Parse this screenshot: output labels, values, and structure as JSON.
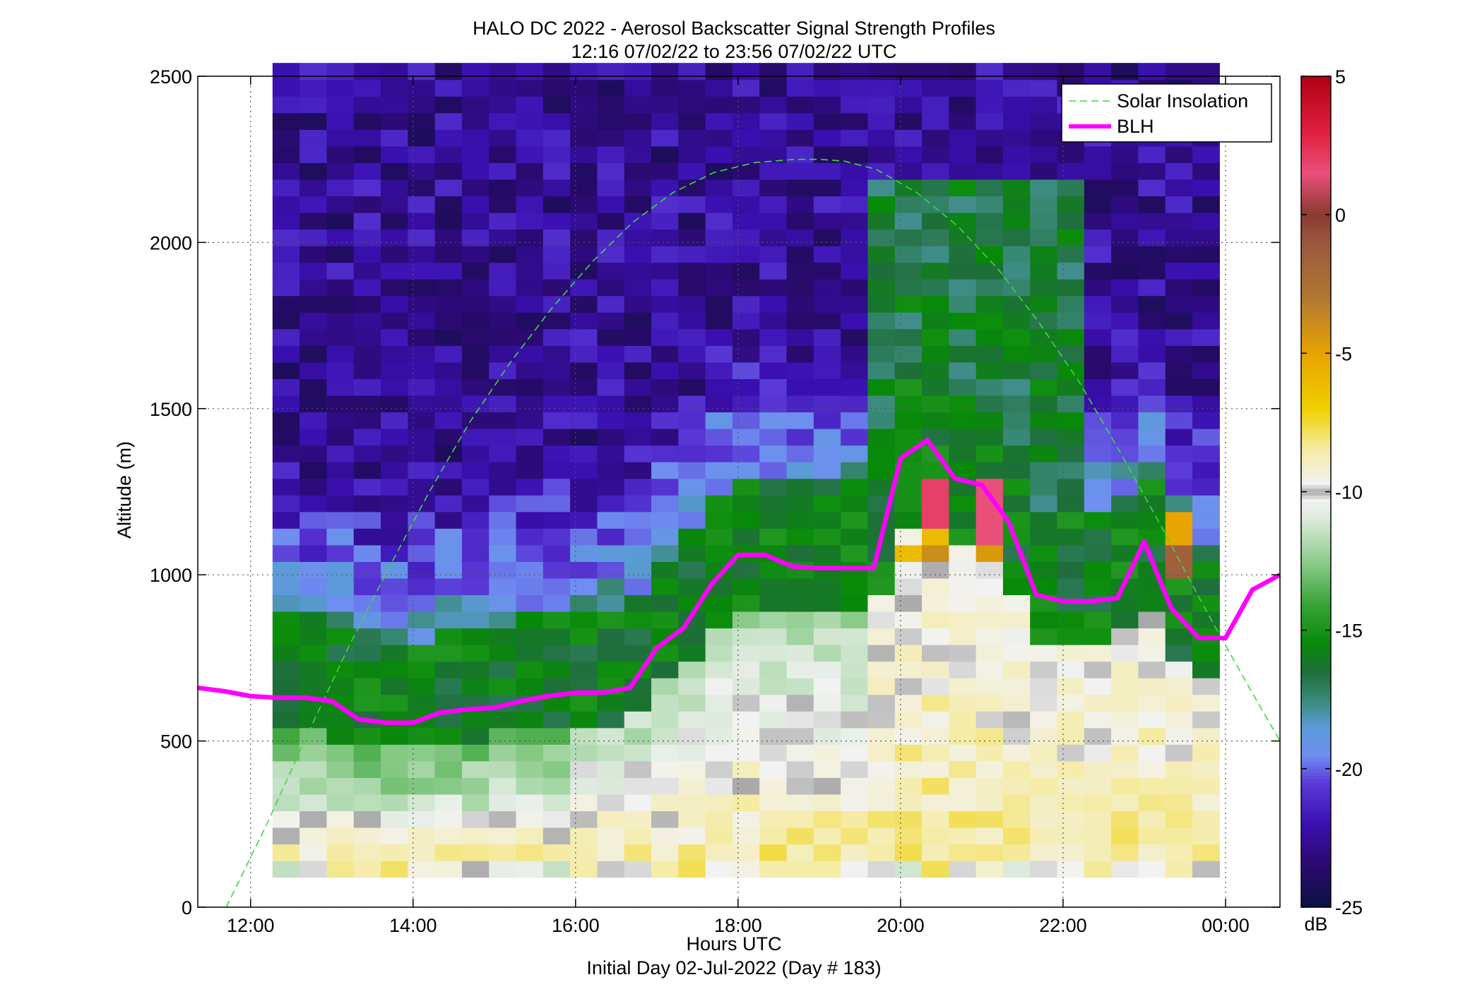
{
  "title": {
    "line1": "HALO DC 2022 - Aerosol Backscatter Signal Strength Profiles",
    "line2": "12:16 07/02/22 to 23:56 07/02/22  UTC"
  },
  "x_axis": {
    "label": "Hours UTC",
    "sublabel": "Initial Day 02-Jul-2022 (Day # 183)",
    "range_hours": [
      11.35,
      24.67
    ],
    "ticks": [
      {
        "value": 12,
        "label": "12:00"
      },
      {
        "value": 14,
        "label": "14:00"
      },
      {
        "value": 16,
        "label": "16:00"
      },
      {
        "value": 18,
        "label": "18:00"
      },
      {
        "value": 20,
        "label": "20:00"
      },
      {
        "value": 22,
        "label": "22:00"
      },
      {
        "value": 24,
        "label": "00:00"
      }
    ]
  },
  "y_axis": {
    "label": "Altitude (m)",
    "range": [
      0,
      2500
    ],
    "ticks": [
      {
        "value": 0,
        "label": "0"
      },
      {
        "value": 500,
        "label": "500"
      },
      {
        "value": 1000,
        "label": "1000"
      },
      {
        "value": 1500,
        "label": "1500"
      },
      {
        "value": 2000,
        "label": "2000"
      },
      {
        "value": 2500,
        "label": "2500"
      }
    ]
  },
  "colorbar": {
    "unit": "dB",
    "range": [
      -25,
      5
    ],
    "ticks": [
      {
        "value": 5,
        "label": "5"
      },
      {
        "value": 0,
        "label": "0"
      },
      {
        "value": -5,
        "label": "-5"
      },
      {
        "value": -10,
        "label": "-10"
      },
      {
        "value": -15,
        "label": "-15"
      },
      {
        "value": -20,
        "label": "-20"
      },
      {
        "value": -25,
        "label": "-25"
      }
    ],
    "stops": [
      {
        "value": -25,
        "color": "#0a1240"
      },
      {
        "value": -23.5,
        "color": "#2a0a6e"
      },
      {
        "value": -22,
        "color": "#3a0fb0"
      },
      {
        "value": -20.5,
        "color": "#5a3ad8"
      },
      {
        "value": -19.5,
        "color": "#6f8ff0"
      },
      {
        "value": -18.5,
        "color": "#5b9bd8"
      },
      {
        "value": -17.5,
        "color": "#3a8a7a"
      },
      {
        "value": -16.5,
        "color": "#1e6e3a"
      },
      {
        "value": -15.5,
        "color": "#078a07"
      },
      {
        "value": -14,
        "color": "#3aa43a"
      },
      {
        "value": -12.5,
        "color": "#8ccc8c"
      },
      {
        "value": -11,
        "color": "#dbeadb"
      },
      {
        "value": -10.3,
        "color": "#f2f2f2"
      },
      {
        "value": -10,
        "color": "#a9a9a9"
      },
      {
        "value": -9.7,
        "color": "#f2f2f2"
      },
      {
        "value": -8.5,
        "color": "#f5eca8"
      },
      {
        "value": -7,
        "color": "#f0d000"
      },
      {
        "value": -5,
        "color": "#e8a400"
      },
      {
        "value": -3,
        "color": "#b07830"
      },
      {
        "value": -1,
        "color": "#9a5840"
      },
      {
        "value": 0,
        "color": "#8a3a30"
      },
      {
        "value": 1.5,
        "color": "#e8507a"
      },
      {
        "value": 3,
        "color": "#e02040"
      },
      {
        "value": 5,
        "color": "#b00010"
      }
    ]
  },
  "legend": {
    "position": "top-right",
    "items": [
      {
        "label": "Solar Insolation",
        "color": "#3adc3a",
        "style": "dashed"
      },
      {
        "label": "BLH",
        "color": "#ff00ff",
        "style": "solid"
      }
    ]
  },
  "chart_data": {
    "type": "heatmap",
    "title": "HALO DC 2022 - Aerosol Backscatter Signal Strength Profiles",
    "xlabel": "Hours UTC",
    "ylabel": "Altitude (m)",
    "xlim": [
      11.35,
      24.67
    ],
    "ylim": [
      0,
      2500
    ],
    "grid": true,
    "colorbar_unit": "dB",
    "heatmap": {
      "x_start_hours": 12.27,
      "x_step_hours": 0.333,
      "columns": 35,
      "y_start_m": 90,
      "y_step_m": 50,
      "rows": 49,
      "values_summary": "signal strength (dB) per time/altitude cell; high values (-8 to -5 dB) near surface, green (-16 dB) in mid layer, purple (-22 dB) aloft; pink/red cloud returns (~+2 dB) near 1100-1250 m around 20:30 and 21:00 UTC"
    },
    "series": [
      {
        "name": "BLH",
        "x": [
          11.35,
          11.67,
          12.0,
          12.33,
          12.67,
          13.0,
          13.33,
          13.67,
          14.0,
          14.33,
          14.67,
          15.0,
          15.33,
          15.67,
          16.0,
          16.33,
          16.67,
          17.0,
          17.33,
          17.67,
          18.0,
          18.33,
          18.67,
          19.0,
          19.33,
          19.67,
          20.0,
          20.33,
          20.67,
          21.0,
          21.33,
          21.67,
          22.0,
          22.33,
          22.67,
          23.0,
          23.33,
          23.67,
          24.0,
          24.33,
          24.67
        ],
        "y": [
          660,
          650,
          635,
          630,
          630,
          620,
          565,
          555,
          555,
          585,
          595,
          600,
          620,
          635,
          645,
          645,
          660,
          780,
          840,
          970,
          1060,
          1060,
          1025,
          1020,
          1020,
          1020,
          1350,
          1405,
          1290,
          1270,
          1160,
          940,
          920,
          920,
          930,
          1100,
          900,
          810,
          810,
          955,
          1000
        ]
      },
      {
        "name": "Solar Insolation",
        "x": [
          11.7,
          12.2,
          12.7,
          13.2,
          13.7,
          14.2,
          14.7,
          15.2,
          15.7,
          16.2,
          16.7,
          17.2,
          17.7,
          18.2,
          18.7,
          19.0,
          19.3,
          19.7,
          20.2,
          20.7,
          21.2,
          21.7,
          22.2,
          22.7,
          23.2,
          23.7,
          24.2,
          24.67
        ],
        "y": [
          0,
          250,
          520,
          780,
          1020,
          1250,
          1460,
          1640,
          1800,
          1940,
          2060,
          2150,
          2210,
          2240,
          2250,
          2250,
          2245,
          2220,
          2150,
          2050,
          1920,
          1760,
          1580,
          1370,
          1150,
          920,
          700,
          500
        ]
      }
    ]
  }
}
